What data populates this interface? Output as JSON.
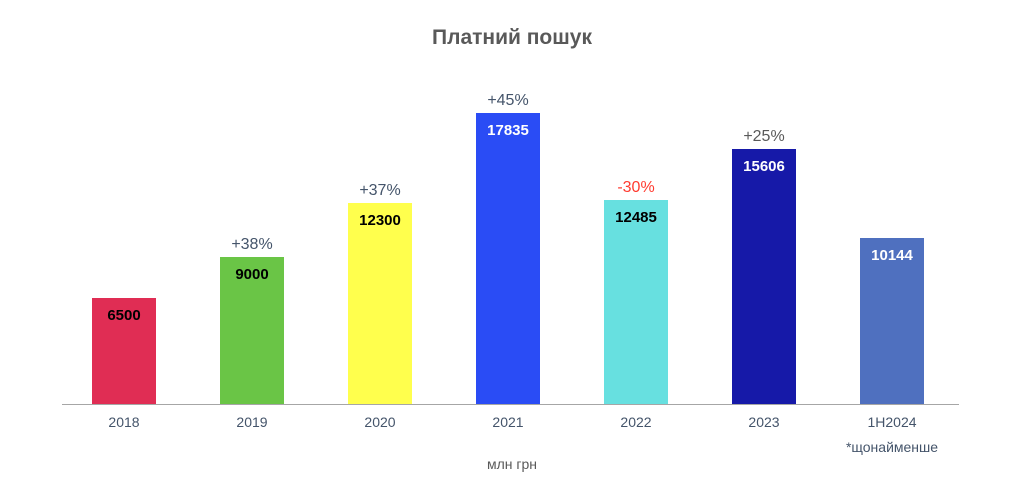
{
  "chart_data": {
    "type": "bar",
    "title": "Платний пошук",
    "xlabel": "млн грн",
    "ylabel": "",
    "categories": [
      "2018",
      "2019",
      "2020",
      "2021",
      "2022",
      "2023",
      "1H2024"
    ],
    "values": [
      6500,
      9000,
      12300,
      17835,
      12485,
      15606,
      10144
    ],
    "value_labels": [
      "6500",
      "9000",
      "12300",
      "17835",
      "12485",
      "15606",
      "10144"
    ],
    "growth_labels": [
      "",
      "+38%",
      "+37%",
      "+45%",
      "-30%",
      "+25%",
      ""
    ],
    "bar_colors": [
      "#e02d54",
      "#6ac546",
      "#ffff4d",
      "#2a4cf5",
      "#67e0e0",
      "#1619a8",
      "#4f70bf"
    ],
    "value_label_colors": [
      "#000000",
      "#000000",
      "#000000",
      "#ffffff",
      "#000000",
      "#ffffff",
      "#ffffff"
    ],
    "growth_label_colors": [
      "",
      "#44546a",
      "#44546a",
      "#44546a",
      "#ff3b30",
      "#595959",
      ""
    ],
    "annotations": [
      {
        "category": "1H2024",
        "text": "*щонайменше"
      }
    ],
    "ylim": [
      0,
      20000
    ],
    "grid": false,
    "legend": "none"
  }
}
